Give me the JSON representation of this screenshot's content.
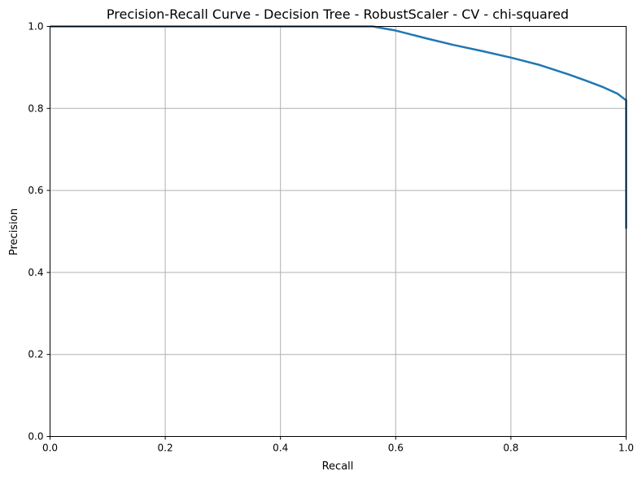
{
  "chart_data": {
    "type": "line",
    "title": "Precision-Recall Curve - Decision Tree - RobustScaler - CV - chi-squared",
    "xlabel": "Recall",
    "ylabel": "Precision",
    "xlim": [
      0,
      1
    ],
    "ylim": [
      0,
      1
    ],
    "xticks": [
      0.0,
      0.2,
      0.4,
      0.6,
      0.8,
      1.0
    ],
    "yticks": [
      0.0,
      0.2,
      0.4,
      0.6,
      0.8,
      1.0
    ],
    "xtick_labels": [
      "0.0",
      "0.2",
      "0.4",
      "0.6",
      "0.8",
      "1.0"
    ],
    "ytick_labels": [
      "0.0",
      "0.2",
      "0.4",
      "0.6",
      "0.8",
      "1.0"
    ],
    "grid": true,
    "series": [
      {
        "color": "#1f77b4",
        "x": [
          0.0,
          0.1,
          0.2,
          0.3,
          0.4,
          0.5,
          0.56,
          0.6,
          0.65,
          0.7,
          0.75,
          0.8,
          0.85,
          0.9,
          0.93,
          0.96,
          0.985,
          1.0,
          1.0
        ],
        "y": [
          1.0,
          1.0,
          1.0,
          1.0,
          1.0,
          1.0,
          1.0,
          0.99,
          0.972,
          0.955,
          0.94,
          0.924,
          0.906,
          0.883,
          0.868,
          0.852,
          0.836,
          0.82,
          0.507
        ]
      }
    ]
  }
}
